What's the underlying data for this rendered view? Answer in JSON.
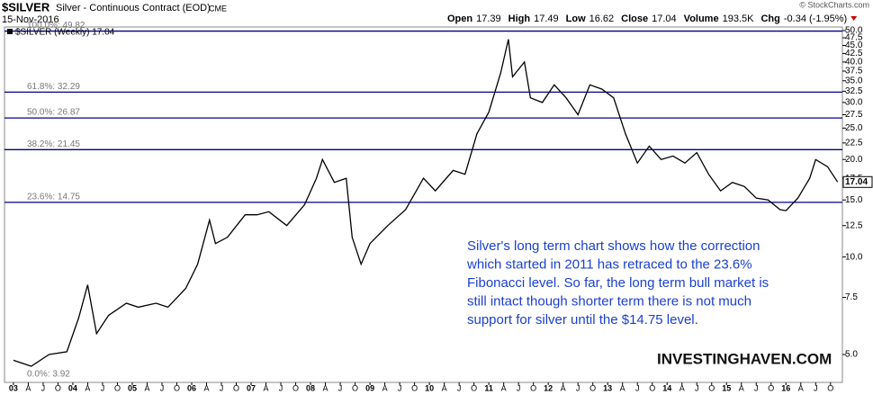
{
  "chart_data": {
    "type": "line",
    "symbol": "$SILVER",
    "title": "Silver - Continuous Contract (EOD)",
    "exchange": "CME",
    "date": "15-Nov-2016",
    "copyright": "© StockCharts.com",
    "stats": [
      {
        "label": "Open",
        "value": 17.39
      },
      {
        "label": "High",
        "value": 17.49
      },
      {
        "label": "Low",
        "value": 16.62
      },
      {
        "label": "Close",
        "value": 17.04
      },
      {
        "label": "Volume",
        "value": "193.5K"
      },
      {
        "label": "Chg",
        "value": "-0.34 (-1.95%)"
      }
    ],
    "legend_label": "$SILVER (Weekly) 17.04",
    "last_price": 17.04,
    "log_scale": true,
    "color": "#000000",
    "level_color": "#00008b",
    "levels": [
      {
        "label": "100.0%: 49.82",
        "value": 49.82
      },
      {
        "label": "61.8%: 32.29",
        "value": 32.29
      },
      {
        "label": "50.0%: 26.87",
        "value": 26.87
      },
      {
        "label": "38.2%: 21.45",
        "value": 21.45
      },
      {
        "label": "23.6%: 14.75",
        "value": 14.75
      },
      {
        "label": "0.0%: 3.92",
        "value": 3.92
      }
    ],
    "annotation": [
      "Silver's long term chart shows how the correction",
      "which started in 2011 has retraced to the 23.6%",
      "Fibonacci level. So far, the long term bull market is",
      "still intact though shorter term there is not much",
      "support for silver until the $14.75 level."
    ],
    "watermark": "INVESTINGHAVEN.COM",
    "series": [
      {
        "name": "$SILVER",
        "x": [
          2003.0,
          2003.3,
          2003.6,
          2003.9,
          2004.1,
          2004.25,
          2004.4,
          2004.6,
          2004.9,
          2005.1,
          2005.4,
          2005.6,
          2005.9,
          2006.1,
          2006.3,
          2006.4,
          2006.6,
          2006.9,
          2007.1,
          2007.3,
          2007.6,
          2007.9,
          2008.1,
          2008.2,
          2008.4,
          2008.6,
          2008.7,
          2008.85,
          2009.0,
          2009.3,
          2009.6,
          2009.9,
          2010.1,
          2010.4,
          2010.6,
          2010.8,
          2011.0,
          2011.2,
          2011.33,
          2011.4,
          2011.6,
          2011.7,
          2011.9,
          2012.1,
          2012.3,
          2012.5,
          2012.7,
          2012.9,
          2013.1,
          2013.3,
          2013.5,
          2013.7,
          2013.9,
          2014.1,
          2014.3,
          2014.5,
          2014.7,
          2014.9,
          2015.1,
          2015.3,
          2015.5,
          2015.7,
          2015.9,
          2016.0,
          2016.2,
          2016.4,
          2016.5,
          2016.7,
          2016.87
        ],
        "values": [
          4.8,
          4.6,
          5.0,
          5.1,
          6.5,
          8.2,
          5.8,
          6.6,
          7.2,
          7.0,
          7.2,
          7.0,
          8.0,
          9.5,
          13.0,
          11.0,
          11.5,
          13.5,
          13.5,
          13.8,
          12.5,
          14.5,
          17.5,
          20.0,
          17.0,
          17.5,
          11.5,
          9.5,
          11.0,
          12.5,
          14.0,
          17.5,
          16.0,
          18.5,
          18.0,
          24.0,
          28.0,
          37.0,
          47.0,
          36.0,
          40.0,
          31.0,
          30.0,
          34.0,
          31.0,
          27.5,
          34.0,
          33.0,
          31.0,
          24.0,
          19.5,
          22.0,
          20.0,
          20.5,
          19.5,
          21.0,
          18.0,
          16.0,
          17.0,
          16.5,
          15.2,
          15.0,
          14.0,
          13.9,
          15.2,
          17.5,
          20.0,
          19.0,
          17.04
        ]
      }
    ],
    "xlim": [
      2002.85,
      2016.95
    ],
    "xticks": [
      {
        "value": 2003,
        "label": "03"
      },
      {
        "value": 2003.25,
        "label": "A"
      },
      {
        "value": 2003.5,
        "label": "J"
      },
      {
        "value": 2003.75,
        "label": "O"
      },
      {
        "value": 2004,
        "label": "04"
      },
      {
        "value": 2004.25,
        "label": "A"
      },
      {
        "value": 2004.5,
        "label": "J"
      },
      {
        "value": 2004.75,
        "label": "O"
      },
      {
        "value": 2005,
        "label": "05"
      },
      {
        "value": 2005.25,
        "label": "A"
      },
      {
        "value": 2005.5,
        "label": "J"
      },
      {
        "value": 2005.75,
        "label": "O"
      },
      {
        "value": 2006,
        "label": "06"
      },
      {
        "value": 2006.25,
        "label": "A"
      },
      {
        "value": 2006.5,
        "label": "J"
      },
      {
        "value": 2006.75,
        "label": "O"
      },
      {
        "value": 2007,
        "label": "07"
      },
      {
        "value": 2007.25,
        "label": "A"
      },
      {
        "value": 2007.5,
        "label": "J"
      },
      {
        "value": 2007.75,
        "label": "O"
      },
      {
        "value": 2008,
        "label": "08"
      },
      {
        "value": 2008.25,
        "label": "A"
      },
      {
        "value": 2008.5,
        "label": "J"
      },
      {
        "value": 2008.75,
        "label": "O"
      },
      {
        "value": 2009,
        "label": "09"
      },
      {
        "value": 2009.25,
        "label": "A"
      },
      {
        "value": 2009.5,
        "label": "J"
      },
      {
        "value": 2009.75,
        "label": "O"
      },
      {
        "value": 2010,
        "label": "10"
      },
      {
        "value": 2010.25,
        "label": "A"
      },
      {
        "value": 2010.5,
        "label": "J"
      },
      {
        "value": 2010.75,
        "label": "O"
      },
      {
        "value": 2011,
        "label": "11"
      },
      {
        "value": 2011.25,
        "label": "A"
      },
      {
        "value": 2011.5,
        "label": "J"
      },
      {
        "value": 2011.75,
        "label": "O"
      },
      {
        "value": 2012,
        "label": "12"
      },
      {
        "value": 2012.25,
        "label": "A"
      },
      {
        "value": 2012.5,
        "label": "J"
      },
      {
        "value": 2012.75,
        "label": "O"
      },
      {
        "value": 2013,
        "label": "13"
      },
      {
        "value": 2013.25,
        "label": "A"
      },
      {
        "value": 2013.5,
        "label": "J"
      },
      {
        "value": 2013.75,
        "label": "O"
      },
      {
        "value": 2014,
        "label": "14"
      },
      {
        "value": 2014.25,
        "label": "A"
      },
      {
        "value": 2014.5,
        "label": "J"
      },
      {
        "value": 2014.75,
        "label": "O"
      },
      {
        "value": 2015,
        "label": "15"
      },
      {
        "value": 2015.25,
        "label": "A"
      },
      {
        "value": 2015.5,
        "label": "J"
      },
      {
        "value": 2015.75,
        "label": "O"
      },
      {
        "value": 2016,
        "label": "16"
      },
      {
        "value": 2016.25,
        "label": "A"
      },
      {
        "value": 2016.5,
        "label": "J"
      },
      {
        "value": 2016.75,
        "label": "O"
      }
    ],
    "ylim": [
      4.1,
      51.3
    ],
    "yticks": [
      {
        "value": 50,
        "label": "50.0"
      },
      47.5,
      {
        "value": 45,
        "label": "45.0"
      },
      42.5,
      {
        "value": 40,
        "label": "40.0"
      },
      37.5,
      {
        "value": 35,
        "label": "35.0"
      },
      32.5,
      {
        "value": 30,
        "label": "30.0"
      },
      27.5,
      {
        "value": 25,
        "label": "25.0"
      },
      22.5,
      {
        "value": 20,
        "label": "20.0"
      },
      17.5,
      {
        "value": 15,
        "label": "15.0"
      },
      12.5,
      {
        "value": 10,
        "label": "10.0"
      },
      7.5,
      {
        "value": 5,
        "label": "5.0"
      }
    ]
  }
}
